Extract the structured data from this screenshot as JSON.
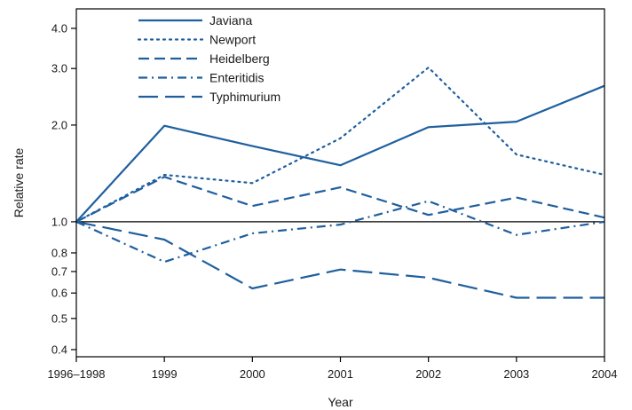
{
  "chart_data": {
    "type": "line",
    "xlabel": "Year",
    "ylabel": "Relative rate",
    "y_scale": "log",
    "ylim": [
      0.38,
      4.6
    ],
    "categories": [
      "1996–1998",
      "1999",
      "2000",
      "2001",
      "2002",
      "2003",
      "2004"
    ],
    "yticks": [
      {
        "value": 0.4,
        "label": "0.4"
      },
      {
        "value": 0.5,
        "label": "0.5"
      },
      {
        "value": 0.6,
        "label": "0.6"
      },
      {
        "value": 0.7,
        "label": "0.7"
      },
      {
        "value": 0.8,
        "label": "0.8"
      },
      {
        "value": 1.0,
        "label": "1.0"
      },
      {
        "value": 2.0,
        "label": "2.0"
      },
      {
        "value": 3.0,
        "label": "3.0"
      },
      {
        "value": 4.0,
        "label": "4.0"
      }
    ],
    "reference_line": 1.0,
    "legend_position": "top-left",
    "color": "#1f5f9e",
    "series": [
      {
        "name": "Javiana",
        "style": "solid",
        "values": [
          1.0,
          1.99,
          1.72,
          1.5,
          1.97,
          2.05,
          2.65
        ]
      },
      {
        "name": "Newport",
        "style": "dotted",
        "values": [
          1.0,
          1.4,
          1.32,
          1.82,
          3.02,
          1.62,
          1.4
        ]
      },
      {
        "name": "Heidelberg",
        "style": "dashed",
        "values": [
          1.0,
          1.38,
          1.12,
          1.28,
          1.05,
          1.19,
          1.03
        ]
      },
      {
        "name": "Enteritidis",
        "style": "dashdot",
        "values": [
          1.0,
          0.75,
          0.92,
          0.98,
          1.16,
          0.91,
          1.0
        ]
      },
      {
        "name": "Typhimurium",
        "style": "longdash",
        "values": [
          1.0,
          0.88,
          0.62,
          0.71,
          0.67,
          0.58,
          0.58
        ]
      }
    ]
  }
}
